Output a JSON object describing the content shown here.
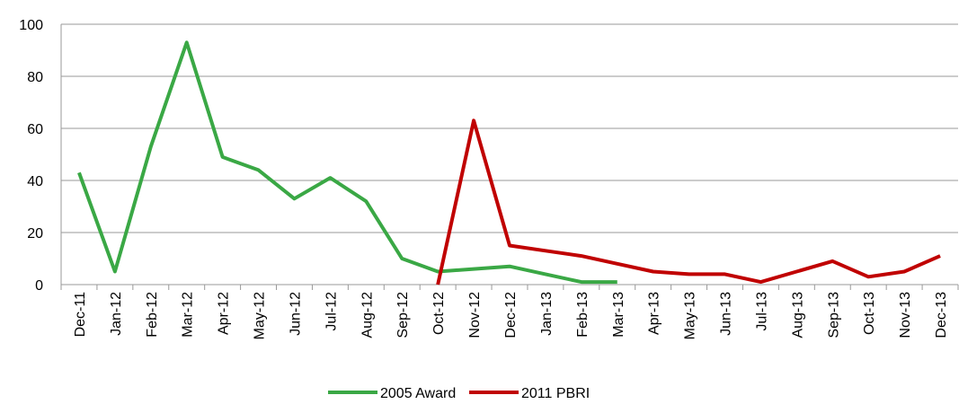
{
  "chart_data": {
    "type": "line",
    "categories": [
      "Dec-11",
      "Jan-12",
      "Feb-12",
      "Mar-12",
      "Apr-12",
      "May-12",
      "Jun-12",
      "Jul-12",
      "Aug-12",
      "Sep-12",
      "Oct-12",
      "Nov-12",
      "Dec-12",
      "Jan-13",
      "Feb-13",
      "Mar-13",
      "Apr-13",
      "May-13",
      "Jun-13",
      "Jul-13",
      "Aug-13",
      "Sep-13",
      "Oct-13",
      "Nov-13",
      "Dec-13"
    ],
    "series": [
      {
        "name": "2005 Award",
        "color": "#3aa845",
        "values": [
          43,
          5,
          53,
          93,
          49,
          44,
          33,
          41,
          32,
          10,
          5,
          6,
          7,
          4,
          1,
          1,
          null,
          null,
          null,
          null,
          null,
          null,
          null,
          null,
          null
        ]
      },
      {
        "name": "2011 PBRI",
        "color": "#c00000",
        "values": [
          null,
          null,
          null,
          null,
          null,
          null,
          null,
          null,
          null,
          null,
          0,
          63,
          15,
          13,
          11,
          8,
          5,
          4,
          4,
          1,
          5,
          9,
          3,
          5,
          11
        ]
      }
    ],
    "ylim": [
      0,
      100
    ],
    "yticks": [
      0,
      20,
      40,
      60,
      80,
      100
    ],
    "grid": true,
    "legend": "bottom"
  }
}
